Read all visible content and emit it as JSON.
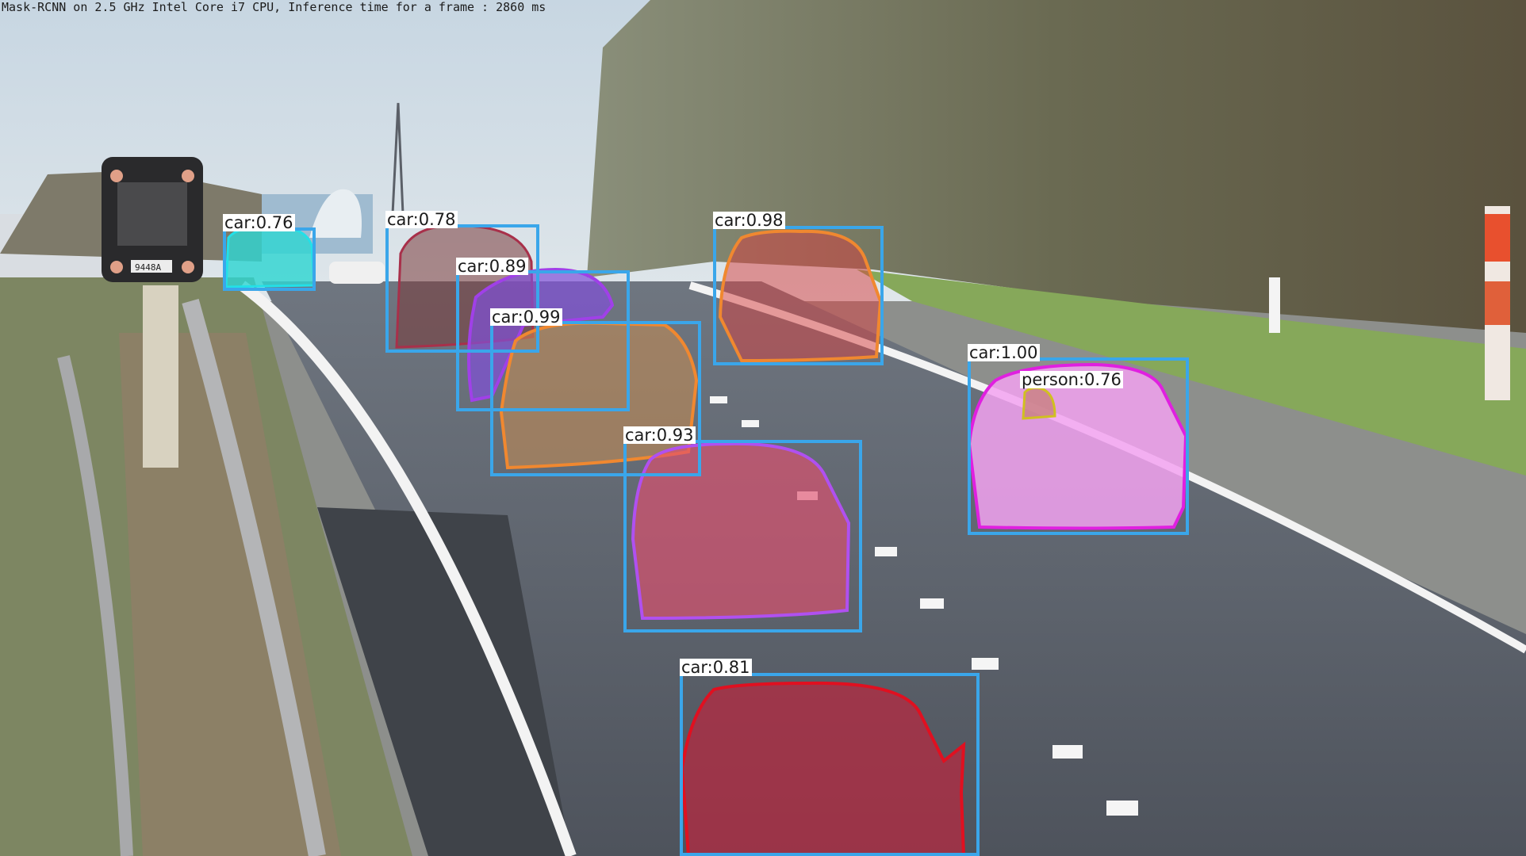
{
  "caption": "Mask-RCNN on 2.5 GHz Intel Core i7 CPU, Inference time for a frame : 2860 ms",
  "sign_plate": "9448A",
  "detections": [
    {
      "id": "d1",
      "label": "car:0.76",
      "mask_color": "#2fd6d2",
      "contour_color": "#22e0e8"
    },
    {
      "id": "d2",
      "label": "car:0.78",
      "mask_color": "#7a3a3a",
      "contour_color": "#a8304a"
    },
    {
      "id": "d3",
      "label": "car:0.89",
      "mask_color": "#8050d8",
      "contour_color": "#a040e8"
    },
    {
      "id": "d4",
      "label": "car:0.99",
      "mask_color": "#c08a55",
      "contour_color": "#f08830"
    },
    {
      "id": "d5",
      "label": "car:0.98",
      "mask_color": "#d84040",
      "contour_color": "#f08830"
    },
    {
      "id": "d6",
      "label": "car:1.00",
      "mask_color": "#f2a2f0",
      "contour_color": "#e020e0"
    },
    {
      "id": "d7",
      "label": "person:0.76",
      "mask_color": "#c87f7f",
      "contour_color": "#d0c020"
    },
    {
      "id": "d8",
      "label": "car:0.93",
      "mask_color": "#e0506e",
      "contour_color": "#b050f0"
    },
    {
      "id": "d9",
      "label": "car:0.81",
      "mask_color": "#b82840",
      "contour_color": "#e01020"
    }
  ],
  "box_color": "#3aa6ea"
}
